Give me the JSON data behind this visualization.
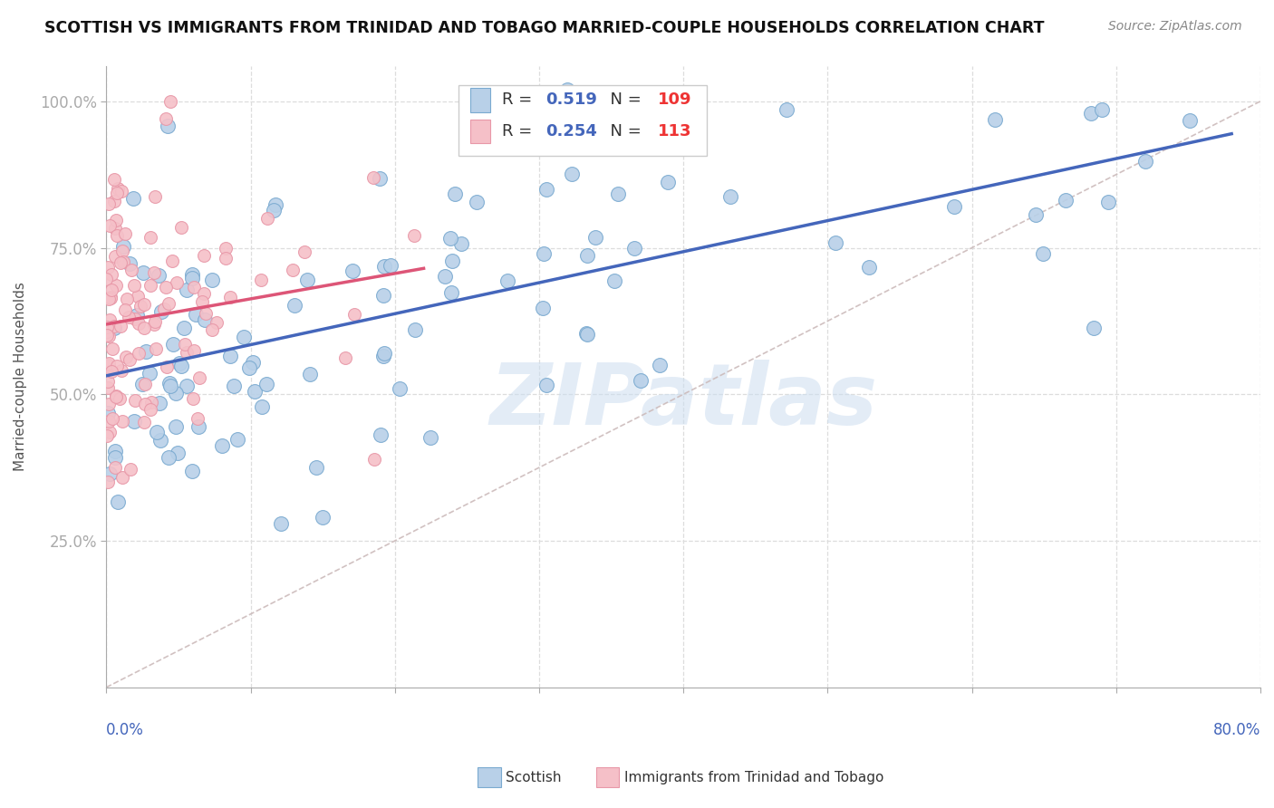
{
  "title": "SCOTTISH VS IMMIGRANTS FROM TRINIDAD AND TOBAGO MARRIED-COUPLE HOUSEHOLDS CORRELATION CHART",
  "source": "Source: ZipAtlas.com",
  "ylabel": "Married-couple Households",
  "legend1_r": "0.519",
  "legend1_n": "109",
  "legend2_r": "0.254",
  "legend2_n": "113",
  "blue_color": "#b8d0e8",
  "blue_edge": "#7aaad0",
  "pink_color": "#f5c0c8",
  "pink_edge": "#e898a8",
  "blue_line_color": "#4466bb",
  "pink_line_color": "#dd5577",
  "ref_line_color": "#ccbbbb",
  "watermark": "ZIPatlas",
  "R_color": "#4466bb",
  "N_color": "#ee3333",
  "title_color": "#111111",
  "tick_color": "#4466bb",
  "label_color": "#555555"
}
